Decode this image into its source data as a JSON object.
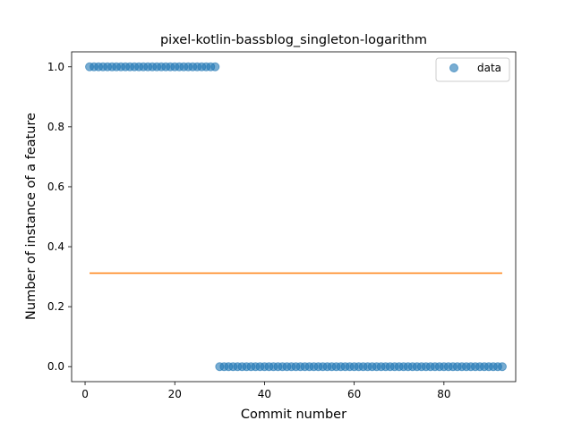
{
  "chart_data": {
    "type": "scatter",
    "title": "pixel-kotlin-bassblog_singleton-logarithm",
    "xlabel": "Commit number",
    "ylabel": "Number of instance of a feature",
    "xlim": [
      -3,
      96
    ],
    "ylim": [
      -0.05,
      1.05
    ],
    "xticks": [
      0,
      20,
      40,
      60,
      80
    ],
    "yticks": [
      0.0,
      0.2,
      0.4,
      0.6,
      0.8,
      1.0
    ],
    "xtick_labels": [
      "0",
      "20",
      "40",
      "60",
      "80"
    ],
    "ytick_labels": [
      "0.0",
      "0.2",
      "0.4",
      "0.6",
      "0.8",
      "1.0"
    ],
    "legend": {
      "position": "top-right",
      "entries": [
        "data"
      ]
    },
    "grid": false,
    "series": [
      {
        "name": "data",
        "kind": "scatter",
        "color": "#1f77b4",
        "segments": [
          {
            "x_start": 1,
            "x_end": 29,
            "y": 1
          },
          {
            "x_start": 30,
            "x_end": 93,
            "y": 0
          }
        ]
      },
      {
        "kind": "line",
        "color": "#ff7f0e",
        "x": [
          1,
          93
        ],
        "y": [
          0.3118,
          0.3118
        ]
      }
    ]
  }
}
